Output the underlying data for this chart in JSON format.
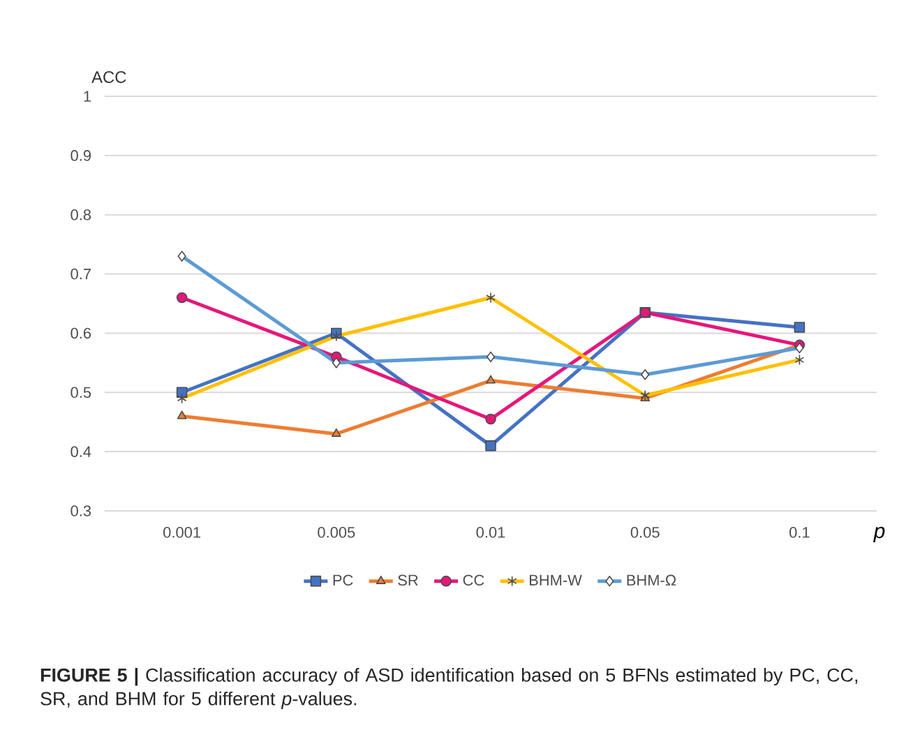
{
  "chart_data": {
    "type": "line",
    "xlabel": "p",
    "ylabel": "ACC",
    "categories": [
      "0.001",
      "0.005",
      "0.01",
      "0.05",
      "0.1"
    ],
    "series": [
      {
        "name": "PC",
        "color": "#4472c4",
        "marker": "square",
        "values": [
          0.5,
          0.6,
          0.41,
          0.635,
          0.61
        ]
      },
      {
        "name": "SR",
        "color": "#ed7d31",
        "marker": "triangle",
        "values": [
          0.46,
          0.43,
          0.52,
          0.49,
          0.58
        ]
      },
      {
        "name": "CC",
        "color": "#e6177a",
        "marker": "circle",
        "values": [
          0.66,
          0.56,
          0.455,
          0.635,
          0.58
        ]
      },
      {
        "name": "BHM-W",
        "color": "#ffc000",
        "marker": "cross",
        "values": [
          0.49,
          0.595,
          0.66,
          0.495,
          0.555
        ]
      },
      {
        "name": "BHM-Ω",
        "color": "#5b9bd5",
        "marker": "diamond",
        "values": [
          0.73,
          0.55,
          0.56,
          0.53,
          0.575
        ]
      }
    ],
    "ylim": [
      0.3,
      1
    ],
    "yticks": [
      0.3,
      0.4,
      0.5,
      0.6,
      0.7,
      0.8,
      0.9,
      1
    ],
    "grid": "y",
    "legend": "bottom",
    "line_style": "solid",
    "annotations": [
      "**FIGURE 5 |** Classification accuracy of ASD identification based on 5 BFNs estimated by PC, CC, SR, and BHM for 5 different *p*-values."
    ]
  }
}
